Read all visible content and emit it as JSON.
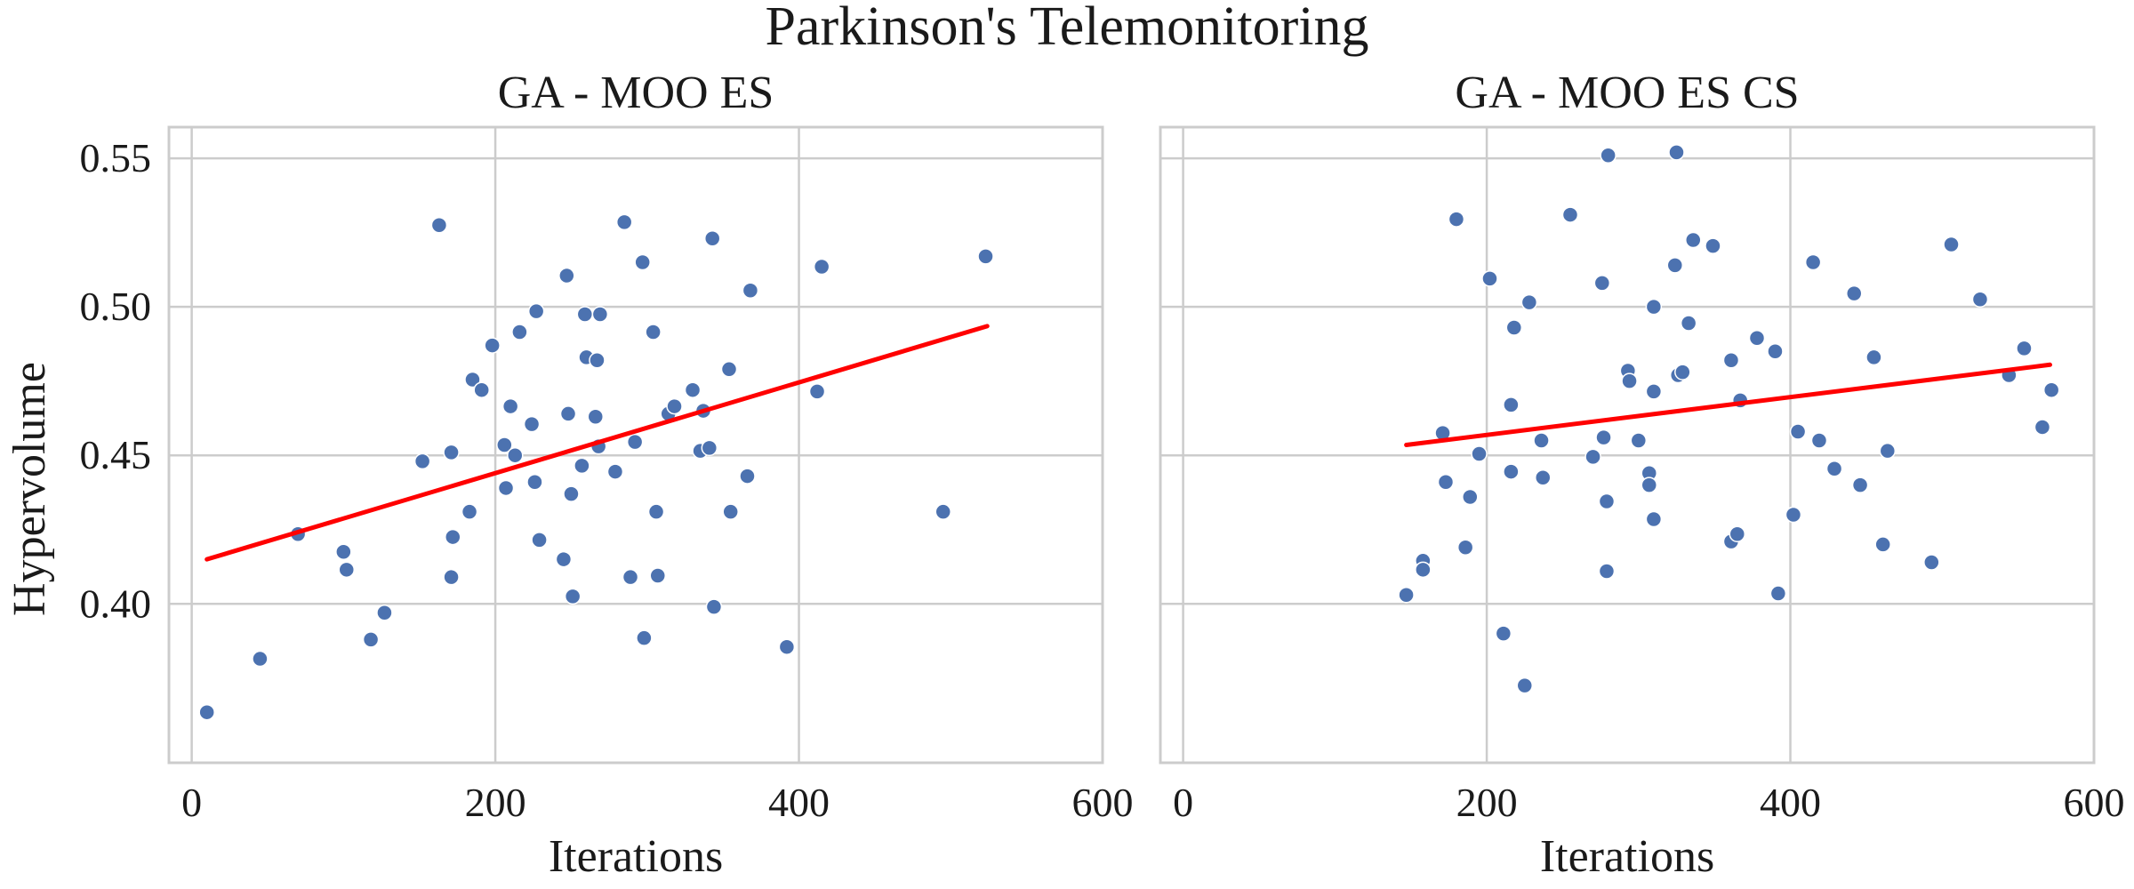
{
  "figure": {
    "title": "Parkinson's Telemonitoring",
    "ylabel": "Hypervolume"
  },
  "chart_data": [
    {
      "type": "scatter",
      "title": "GA - MOO ES",
      "xlabel": "Iterations",
      "ylabel": "Hypervolume",
      "xlim": [
        -15,
        600
      ],
      "ylim": [
        0.3465,
        0.5605
      ],
      "xticks": [
        0,
        200,
        400,
        600
      ],
      "yticks": [
        0.4,
        0.45,
        0.5,
        0.55
      ],
      "xtick_labels": [
        "0",
        "200",
        "400",
        "600"
      ],
      "ytick_labels": [
        "0.40",
        "0.45",
        "0.50",
        "0.55"
      ],
      "grid": true,
      "point_color": "#4c72b0",
      "trend_color": "#ff0000",
      "trend": {
        "x": [
          10,
          524
        ],
        "y": [
          0.415,
          0.4935
        ]
      },
      "points": [
        [
          10,
          0.3635
        ],
        [
          45,
          0.3815
        ],
        [
          70,
          0.4235
        ],
        [
          100,
          0.4175
        ],
        [
          102,
          0.4115
        ],
        [
          118,
          0.388
        ],
        [
          127,
          0.397
        ],
        [
          152,
          0.448
        ],
        [
          163,
          0.5275
        ],
        [
          171,
          0.451
        ],
        [
          172,
          0.4225
        ],
        [
          171,
          0.409
        ],
        [
          183,
          0.431
        ],
        [
          185,
          0.4755
        ],
        [
          191,
          0.472
        ],
        [
          198,
          0.487
        ],
        [
          206,
          0.4535
        ],
        [
          207,
          0.439
        ],
        [
          210,
          0.4665
        ],
        [
          213,
          0.45
        ],
        [
          216,
          0.4915
        ],
        [
          224,
          0.4605
        ],
        [
          227,
          0.4985
        ],
        [
          226,
          0.441
        ],
        [
          229,
          0.4215
        ],
        [
          245,
          0.415
        ],
        [
          247,
          0.5105
        ],
        [
          248,
          0.464
        ],
        [
          250,
          0.437
        ],
        [
          251,
          0.4025
        ],
        [
          257,
          0.4465
        ],
        [
          259,
          0.4975
        ],
        [
          260,
          0.483
        ],
        [
          266,
          0.463
        ],
        [
          267,
          0.482
        ],
        [
          268,
          0.453
        ],
        [
          269,
          0.4975
        ],
        [
          279,
          0.4445
        ],
        [
          285,
          0.5285
        ],
        [
          289,
          0.409
        ],
        [
          292,
          0.4545
        ],
        [
          297,
          0.515
        ],
        [
          298,
          0.3885
        ],
        [
          304,
          0.4915
        ],
        [
          306,
          0.431
        ],
        [
          307,
          0.4095
        ],
        [
          314,
          0.464
        ],
        [
          318,
          0.4665
        ],
        [
          330,
          0.472
        ],
        [
          335,
          0.4515
        ],
        [
          337,
          0.465
        ],
        [
          341,
          0.4525
        ],
        [
          343,
          0.523
        ],
        [
          344,
          0.399
        ],
        [
          354,
          0.479
        ],
        [
          355,
          0.431
        ],
        [
          366,
          0.443
        ],
        [
          368,
          0.5055
        ],
        [
          392,
          0.3855
        ],
        [
          412,
          0.4715
        ],
        [
          415,
          0.5135
        ],
        [
          495,
          0.431
        ],
        [
          523,
          0.517
        ]
      ]
    },
    {
      "type": "scatter",
      "title": "GA - MOO ES CS",
      "xlabel": "Iterations",
      "ylabel": "Hypervolume",
      "xlim": [
        -15,
        600
      ],
      "ylim": [
        0.3465,
        0.5605
      ],
      "xticks": [
        0,
        200,
        400,
        600
      ],
      "yticks": [
        0.4,
        0.45,
        0.5,
        0.55
      ],
      "xtick_labels": [
        "0",
        "200",
        "400",
        "600"
      ],
      "ytick_labels": [
        "",
        "",
        "",
        ""
      ],
      "grid": true,
      "point_color": "#4c72b0",
      "trend_color": "#ff0000",
      "trend": {
        "x": [
          147,
          571
        ],
        "y": [
          0.4535,
          0.4805
        ]
      },
      "points": [
        [
          147,
          0.403
        ],
        [
          158,
          0.4145
        ],
        [
          158,
          0.4115
        ],
        [
          171,
          0.4575
        ],
        [
          173,
          0.441
        ],
        [
          180,
          0.5295
        ],
        [
          186,
          0.419
        ],
        [
          189,
          0.436
        ],
        [
          195,
          0.4505
        ],
        [
          202,
          0.5095
        ],
        [
          211,
          0.39
        ],
        [
          216,
          0.467
        ],
        [
          216,
          0.4445
        ],
        [
          218,
          0.493
        ],
        [
          225,
          0.3725
        ],
        [
          228,
          0.5015
        ],
        [
          236,
          0.455
        ],
        [
          237,
          0.4425
        ],
        [
          255,
          0.531
        ],
        [
          270,
          0.4495
        ],
        [
          276,
          0.508
        ],
        [
          277,
          0.456
        ],
        [
          279,
          0.4345
        ],
        [
          279,
          0.411
        ],
        [
          280,
          0.551
        ],
        [
          293,
          0.4785
        ],
        [
          294,
          0.475
        ],
        [
          300,
          0.455
        ],
        [
          307,
          0.444
        ],
        [
          307,
          0.44
        ],
        [
          310,
          0.5
        ],
        [
          310,
          0.4715
        ],
        [
          310,
          0.4285
        ],
        [
          324,
          0.514
        ],
        [
          325,
          0.552
        ],
        [
          326,
          0.477
        ],
        [
          329,
          0.478
        ],
        [
          333,
          0.4945
        ],
        [
          336,
          0.5225
        ],
        [
          349,
          0.5205
        ],
        [
          361,
          0.482
        ],
        [
          361,
          0.421
        ],
        [
          365,
          0.4235
        ],
        [
          367,
          0.4685
        ],
        [
          378,
          0.4895
        ],
        [
          390,
          0.485
        ],
        [
          392,
          0.4035
        ],
        [
          402,
          0.43
        ],
        [
          405,
          0.458
        ],
        [
          415,
          0.515
        ],
        [
          419,
          0.455
        ],
        [
          429,
          0.4455
        ],
        [
          442,
          0.5045
        ],
        [
          446,
          0.44
        ],
        [
          455,
          0.483
        ],
        [
          461,
          0.42
        ],
        [
          464,
          0.4515
        ],
        [
          493,
          0.414
        ],
        [
          506,
          0.521
        ],
        [
          525,
          0.5025
        ],
        [
          544,
          0.477
        ],
        [
          554,
          0.486
        ],
        [
          566,
          0.4595
        ],
        [
          572,
          0.472
        ]
      ]
    }
  ]
}
